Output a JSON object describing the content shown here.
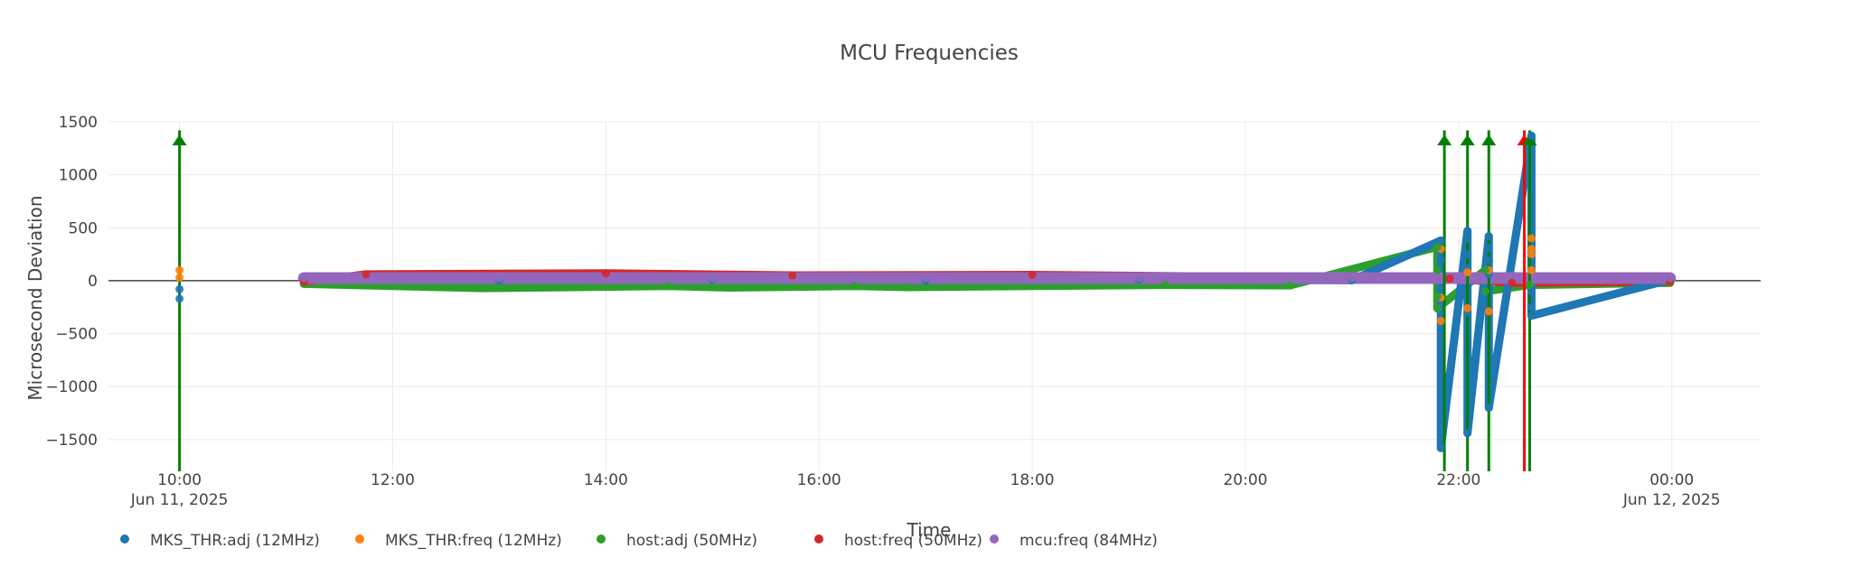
{
  "chart_data": {
    "type": "scatter",
    "title": "MCU Frequencies",
    "xlabel": "Time",
    "ylabel": "Microsecond Deviation",
    "x_range": [
      "2025-06-11 09:20",
      "2025-06-12 00:50"
    ],
    "ylim": [
      -1800,
      1500
    ],
    "yticks": [
      1500,
      1000,
      500,
      0,
      -500,
      -1000,
      -1500
    ],
    "ytick_labels": [
      "1500",
      "1000",
      "500",
      "0",
      "−500",
      "−1000",
      "−1500"
    ],
    "xticks": [
      {
        "t": "2025-06-11 10:00",
        "label": "10:00",
        "sublabel": "Jun 11, 2025"
      },
      {
        "t": "2025-06-11 12:00",
        "label": "12:00",
        "sublabel": ""
      },
      {
        "t": "2025-06-11 14:00",
        "label": "14:00",
        "sublabel": ""
      },
      {
        "t": "2025-06-11 16:00",
        "label": "16:00",
        "sublabel": ""
      },
      {
        "t": "2025-06-11 18:00",
        "label": "18:00",
        "sublabel": ""
      },
      {
        "t": "2025-06-11 20:00",
        "label": "20:00",
        "sublabel": ""
      },
      {
        "t": "2025-06-11 22:00",
        "label": "22:00",
        "sublabel": ""
      },
      {
        "t": "2025-06-12 00:00",
        "label": "00:00",
        "sublabel": "Jun 12, 2025"
      }
    ],
    "grid": true,
    "legend_position": "bottom",
    "series": [
      {
        "name": "MKS_THR:adj (12MHz)",
        "color": "#1f77b4",
        "x": [
          "2025-06-11 10:00",
          "2025-06-11 10:00",
          "2025-06-11 11:10",
          "2025-06-11 13:00",
          "2025-06-11 15:00",
          "2025-06-11 17:00",
          "2025-06-11 19:00",
          "2025-06-11 21:00",
          "2025-06-11 21:50",
          "2025-06-11 21:50",
          "2025-06-11 21:50",
          "2025-06-11 22:05",
          "2025-06-11 22:05",
          "2025-06-11 22:05",
          "2025-06-11 22:05",
          "2025-06-11 22:05",
          "2025-06-11 22:05",
          "2025-06-11 22:17",
          "2025-06-11 22:17",
          "2025-06-11 22:17",
          "2025-06-11 22:17",
          "2025-06-11 22:17",
          "2025-06-11 22:41",
          "2025-06-11 22:41",
          "2025-06-11 22:41",
          "2025-06-11 22:41",
          "2025-06-11 23:59"
        ],
        "y": [
          -170,
          -80,
          10,
          5,
          10,
          5,
          10,
          5,
          380,
          200,
          -1580,
          470,
          400,
          250,
          120,
          -300,
          -1440,
          420,
          310,
          190,
          60,
          -1200,
          1370,
          -100,
          -250,
          -330,
          10
        ]
      },
      {
        "name": "MKS_THR:freq (12MHz)",
        "color": "#ff7f0e",
        "x": [
          "2025-06-11 10:00",
          "2025-06-11 10:00",
          "2025-06-11 21:50",
          "2025-06-11 21:50",
          "2025-06-11 21:50",
          "2025-06-11 22:05",
          "2025-06-11 22:05",
          "2025-06-11 22:17",
          "2025-06-11 22:17",
          "2025-06-11 22:41",
          "2025-06-11 22:41",
          "2025-06-11 22:41",
          "2025-06-11 22:41"
        ],
        "y": [
          100,
          30,
          300,
          -160,
          -380,
          80,
          -260,
          100,
          -290,
          400,
          300,
          250,
          100
        ]
      },
      {
        "name": "host:adj (50MHz)",
        "color": "#2ca02c",
        "x": [
          "2025-06-11 11:10",
          "2025-06-11 12:50",
          "2025-06-11 14:35",
          "2025-06-11 15:10",
          "2025-06-11 16:20",
          "2025-06-11 16:50",
          "2025-06-11 19:15",
          "2025-06-11 20:25",
          "2025-06-11 21:48",
          "2025-06-11 21:48",
          "2025-06-11 21:48",
          "2025-06-11 21:48",
          "2025-06-11 22:15",
          "2025-06-11 22:15",
          "2025-06-11 22:40",
          "2025-06-11 23:59"
        ],
        "y": [
          -30,
          -70,
          -50,
          -65,
          -50,
          -60,
          -40,
          -45,
          320,
          100,
          -150,
          -260,
          100,
          -100,
          -40,
          -20
        ]
      },
      {
        "name": "host:freq (50MHz)",
        "color": "#d62728",
        "x": [
          "2025-06-11 11:10",
          "2025-06-11 11:45",
          "2025-06-11 14:00",
          "2025-06-11 15:45",
          "2025-06-11 18:00",
          "2025-06-11 21:55",
          "2025-06-11 22:30",
          "2025-06-11 23:59"
        ],
        "y": [
          -10,
          60,
          70,
          50,
          55,
          20,
          -20,
          -10
        ]
      },
      {
        "name": "mcu:freq (84MHz)",
        "color": "#9467bd",
        "x": [
          "2025-06-11 11:10",
          "2025-06-11 13:00",
          "2025-06-11 15:00",
          "2025-06-11 17:00",
          "2025-06-11 19:00",
          "2025-06-11 21:00",
          "2025-06-11 22:00",
          "2025-06-11 23:00",
          "2025-06-11 23:59"
        ],
        "y": [
          25,
          25,
          25,
          25,
          25,
          25,
          25,
          25,
          25
        ]
      }
    ],
    "annotations": [
      {
        "x": "2025-06-11 10:00",
        "color": "#008000",
        "direction": "up"
      },
      {
        "x": "2025-06-11 21:52",
        "color": "#008000",
        "direction": "up"
      },
      {
        "x": "2025-06-11 22:05",
        "color": "#008000",
        "direction": "up"
      },
      {
        "x": "2025-06-11 22:17",
        "color": "#008000",
        "direction": "up"
      },
      {
        "x": "2025-06-11 22:37",
        "color": "#ff0000",
        "direction": "up"
      },
      {
        "x": "2025-06-11 22:40",
        "color": "#008000",
        "direction": "up"
      }
    ]
  }
}
